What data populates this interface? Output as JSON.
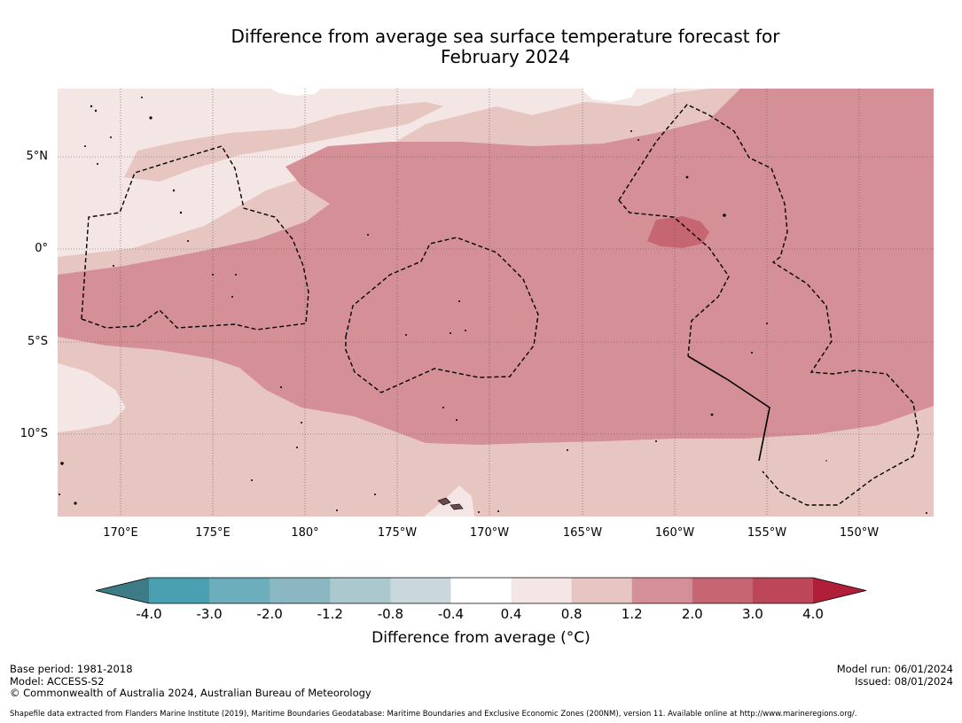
{
  "title": {
    "line1": "Difference from average sea surface temperature forecast for",
    "line2": "February 2024"
  },
  "map": {
    "lat_labels": [
      "5°N",
      "0°",
      "5°S",
      "10°S"
    ],
    "lon_labels": [
      "170°E",
      "175°E",
      "180°",
      "175°W",
      "170°W",
      "165°W",
      "160°W",
      "155°W",
      "150°W"
    ],
    "colors": {
      "c_04_08": "#f4e6e4",
      "c_08_12": "#e7c6c1",
      "c_12_20": "#d58f97",
      "c_20_30": "#c56672",
      "land": "#6b4b4b",
      "boundary": "#000000"
    }
  },
  "colorbar": {
    "label": "Difference from average (°C)",
    "ticks": [
      "-4.0",
      "-3.0",
      "-2.0",
      "-1.2",
      "-0.8",
      "-0.4",
      "0.4",
      "0.8",
      "1.2",
      "2.0",
      "3.0",
      "4.0"
    ],
    "under_color": "#3d7c86",
    "over_color": "#b01e38",
    "segment_colors": [
      "#4aa0b1",
      "#6caebb",
      "#8ab7c2",
      "#aac8cd",
      "#c8d8dc",
      "#ffffff",
      "#f4e6e4",
      "#e7c6c1",
      "#d58f97",
      "#c56672",
      "#bd4758"
    ]
  },
  "footer": {
    "base_period": "Base period: 1981-2018",
    "model": "Model: ACCESS-S2",
    "copyright": "© Commonwealth of Australia 2024, Australian Bureau of Meteorology",
    "model_run": "Model run: 06/01/2024",
    "issued": "Issued: 08/01/2024",
    "shapefile_note": "Shapefile data extracted from Flanders Marine Institute (2019), Maritime Boundaries Geodatabase: Maritime Boundaries and Exclusive Economic Zones (200NM), version 11. Available online at http://www.marineregions.org/."
  }
}
